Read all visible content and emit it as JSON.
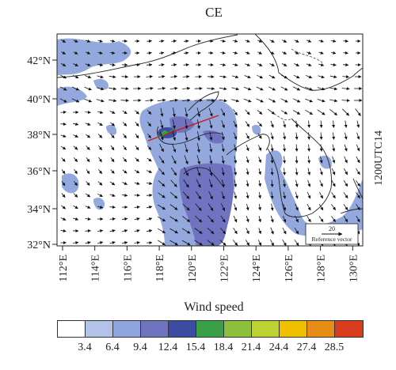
{
  "title": "CE",
  "time_label": "1200UTC14",
  "lat_labels": [
    "42°N",
    "40°N",
    "38°N",
    "36°N",
    "34°N",
    "32°N"
  ],
  "lon_labels": [
    "112°E",
    "114°E",
    "116°E",
    "118°E",
    "120°E",
    "122°E",
    "124°E",
    "126°E",
    "128°E",
    "130°E"
  ],
  "reference": {
    "value": "20",
    "label": "Reference vector"
  },
  "colorbar": {
    "title": "Wind speed",
    "ticks": [
      "3.4",
      "6.4",
      "9.4",
      "12.4",
      "15.4",
      "18.4",
      "21.4",
      "24.4",
      "27.4",
      "28.5"
    ],
    "colors": [
      "#ffffff",
      "#b3c2e8",
      "#8ea4dc",
      "#6f73c0",
      "#3d4ba0",
      "#3aa048",
      "#8cc03c",
      "#bcd232",
      "#f0c000",
      "#e88c18",
      "#d83c1c"
    ]
  }
}
